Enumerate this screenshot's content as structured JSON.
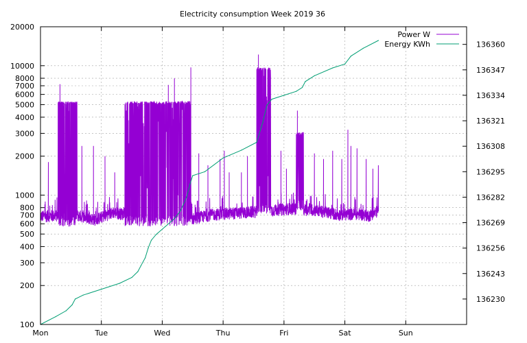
{
  "chart_data": {
    "type": "line",
    "title": "Electricity consumption Week 2019 36",
    "xlabel": "",
    "ylabel": "",
    "y2label": "",
    "x_tick_labels": [
      "Mon",
      "Tue",
      "Wed",
      "Thu",
      "Fri",
      "Sat",
      "Sun"
    ],
    "xlim_days": [
      0,
      7
    ],
    "y_scale": "log",
    "ylim": [
      100,
      20000
    ],
    "y_tick_labels": [
      "100",
      "200",
      "300",
      "400",
      "500",
      "600",
      "700",
      "800",
      "1000",
      "2000",
      "3000",
      "4000",
      "5000",
      "6000",
      "7000",
      "8000",
      "10000",
      "20000"
    ],
    "y2lim": [
      136217,
      136369
    ],
    "y2_tick_labels": [
      "136230",
      "136243",
      "136256",
      "136269",
      "136282",
      "136295",
      "136308",
      "136321",
      "136334",
      "136347",
      "136360"
    ],
    "grid": true,
    "legend_position": "top-right",
    "series": [
      {
        "name": "Power W",
        "axis": "y",
        "color": "#9400d3",
        "baseline_points": [
          [
            0.0,
            680
          ],
          [
            0.3,
            690
          ],
          [
            0.5,
            710
          ],
          [
            0.9,
            640
          ],
          [
            1.2,
            730
          ],
          [
            1.4,
            700
          ],
          [
            2.5,
            650
          ],
          [
            2.8,
            700
          ],
          [
            3.2,
            720
          ],
          [
            3.6,
            740
          ],
          [
            4.1,
            780
          ],
          [
            4.5,
            760
          ],
          [
            4.9,
            700
          ],
          [
            5.2,
            710
          ],
          [
            5.4,
            690
          ],
          [
            5.6,
            770
          ]
        ],
        "bursts": [
          {
            "from": 0.29,
            "to": 0.6,
            "low": 600,
            "high": 5200,
            "density": 0.18
          },
          {
            "from": 1.38,
            "to": 2.46,
            "low": 600,
            "high": 5200,
            "density": 0.004
          },
          {
            "from": 3.55,
            "to": 3.78,
            "low": 750,
            "high": 9500,
            "density": 0.03
          },
          {
            "from": 4.2,
            "to": 4.32,
            "low": 800,
            "high": 3000,
            "density": 0.03
          }
        ],
        "spikes": [
          [
            0.13,
            1800
          ],
          [
            0.32,
            7200
          ],
          [
            0.68,
            2400
          ],
          [
            0.87,
            2400
          ],
          [
            1.06,
            2000
          ],
          [
            1.22,
            1500
          ],
          [
            1.5,
            2400
          ],
          [
            2.1,
            7100
          ],
          [
            2.2,
            8000
          ],
          [
            2.47,
            9700
          ],
          [
            2.6,
            2100
          ],
          [
            2.75,
            1700
          ],
          [
            2.95,
            1900
          ],
          [
            3.02,
            2200
          ],
          [
            3.1,
            1500
          ],
          [
            3.3,
            1500
          ],
          [
            3.4,
            2000
          ],
          [
            3.58,
            12200
          ],
          [
            3.62,
            9200
          ],
          [
            3.68,
            7600
          ],
          [
            3.95,
            2200
          ],
          [
            4.04,
            1600
          ],
          [
            4.22,
            4500
          ],
          [
            4.27,
            3000
          ],
          [
            4.5,
            2100
          ],
          [
            4.65,
            1900
          ],
          [
            4.8,
            2200
          ],
          [
            4.95,
            1900
          ],
          [
            5.05,
            3200
          ],
          [
            5.1,
            2400
          ],
          [
            5.2,
            2300
          ],
          [
            5.35,
            1900
          ],
          [
            5.46,
            1600
          ],
          [
            5.55,
            1700
          ]
        ],
        "x_end_days": 5.55
      },
      {
        "name": "Energy KWh",
        "axis": "y2",
        "color": "#009e73",
        "points": [
          [
            0.0,
            136217
          ],
          [
            0.25,
            136221
          ],
          [
            0.42,
            136224
          ],
          [
            0.52,
            136227
          ],
          [
            0.57,
            136230
          ],
          [
            0.7,
            136232
          ],
          [
            1.0,
            136235
          ],
          [
            1.3,
            136238
          ],
          [
            1.5,
            136241
          ],
          [
            1.6,
            136244
          ],
          [
            1.65,
            136247
          ],
          [
            1.72,
            136251
          ],
          [
            1.77,
            136256
          ],
          [
            1.82,
            136260
          ],
          [
            1.9,
            136263
          ],
          [
            2.05,
            136267
          ],
          [
            2.2,
            136271
          ],
          [
            2.3,
            136275
          ],
          [
            2.4,
            136282
          ],
          [
            2.46,
            136289
          ],
          [
            2.5,
            136293
          ],
          [
            2.7,
            136295
          ],
          [
            3.0,
            136302
          ],
          [
            3.3,
            136306
          ],
          [
            3.55,
            136310
          ],
          [
            3.65,
            136320
          ],
          [
            3.72,
            136329
          ],
          [
            3.8,
            136332
          ],
          [
            4.0,
            136334
          ],
          [
            4.2,
            136336
          ],
          [
            4.3,
            136338
          ],
          [
            4.35,
            136341
          ],
          [
            4.5,
            136344
          ],
          [
            4.8,
            136348
          ],
          [
            5.0,
            136350
          ],
          [
            5.1,
            136354
          ],
          [
            5.3,
            136358
          ],
          [
            5.55,
            136362
          ]
        ]
      }
    ]
  }
}
